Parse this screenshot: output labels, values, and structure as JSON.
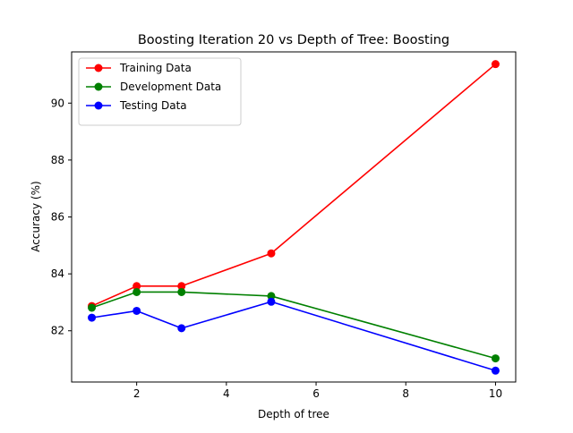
{
  "chart_data": {
    "type": "line",
    "title": "Boosting Iteration 20 vs Depth of Tree: Boosting",
    "xlabel": "Depth of tree",
    "ylabel": "Accuracy (%)",
    "xlim": [
      0.55,
      10.45
    ],
    "ylim": [
      80.2,
      91.8
    ],
    "x_ticks": [
      2,
      4,
      6,
      8,
      10
    ],
    "y_ticks": [
      82,
      84,
      86,
      88,
      90
    ],
    "grid": false,
    "legend_position": "top-left",
    "x": [
      1,
      2,
      3,
      5,
      10
    ],
    "series": [
      {
        "name": "Training Data",
        "color": "#ff0000",
        "marker": "circle",
        "values": [
          82.87,
          83.57,
          83.57,
          84.72,
          91.37
        ]
      },
      {
        "name": "Development Data",
        "color": "#008000",
        "marker": "circle",
        "values": [
          82.81,
          83.36,
          83.36,
          83.22,
          81.03
        ]
      },
      {
        "name": "Testing Data",
        "color": "#0000ff",
        "marker": "circle",
        "values": [
          82.46,
          82.7,
          82.09,
          83.02,
          80.6
        ]
      }
    ]
  }
}
